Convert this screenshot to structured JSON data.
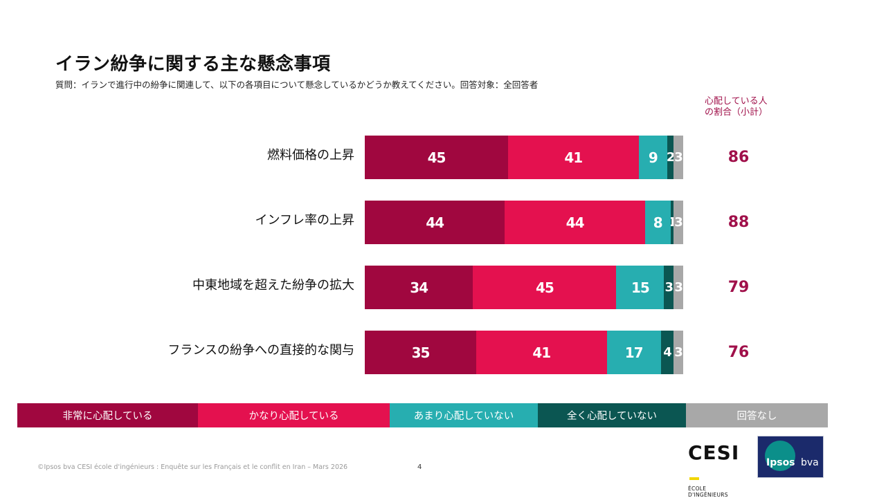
{
  "title": "イラン紛争に関する主な懸念事項",
  "subtitle": "質問：イランで進行中の紛争に関連して、以下の各項目について懸念しているかどうか教えてください。回答対象：全回答者",
  "subtotal_header": "心配している人\nの割合（小計）",
  "colors": {
    "very_concerned": "#a0073f",
    "fairly_concerned": "#e4114f",
    "not_very_concerned": "#27aeb0",
    "not_at_all_concerned": "#0b5652",
    "no_answer": "#a8a8a8",
    "subtotal_text": "#a0104a"
  },
  "chart_data": {
    "type": "bar",
    "orientation": "horizontal",
    "stacked": true,
    "title": "イラン紛争に関する主な懸念事項",
    "categories": [
      "燃料価格の上昇",
      "インフレ率の上昇",
      "中東地域を超えた紛争の拡大",
      "フランスの紛争への直接的な関与"
    ],
    "series": [
      {
        "name": "非常に心配している",
        "values": [
          45,
          44,
          34,
          35
        ]
      },
      {
        "name": "かなり心配している",
        "values": [
          41,
          44,
          45,
          41
        ]
      },
      {
        "name": "あまり心配していない",
        "values": [
          9,
          8,
          15,
          17
        ]
      },
      {
        "name": "全く心配していない",
        "values": [
          2,
          1,
          3,
          4
        ]
      },
      {
        "name": "回答なし",
        "values": [
          3,
          3,
          3,
          3
        ]
      }
    ],
    "subtotals": [
      86,
      88,
      79,
      76
    ],
    "xlim": [
      0,
      100
    ],
    "legend_position": "bottom"
  },
  "footer": {
    "note": "©Ipsos bva CESI école d'ingénieurs : Enquête sur les Français et le conflit en Iran – Mars 2026",
    "page": "4"
  },
  "logos": {
    "cesi": "CESI",
    "cesi_sub": "ÉCOLE D'INGÉNIEURS",
    "ipsos": "Ipsos",
    "bva": "bva"
  }
}
